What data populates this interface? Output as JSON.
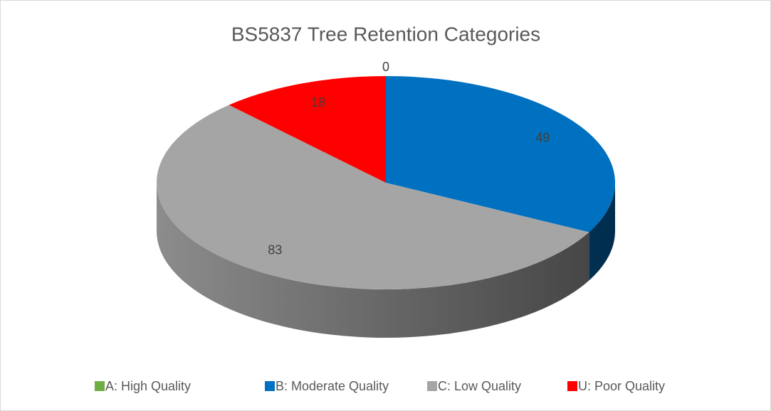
{
  "chart_data": {
    "type": "pie",
    "title": "BS5837 Tree Retention Categories",
    "categories": [
      "A: High Quality",
      "B: Moderate Quality",
      "C: Low Quality",
      "U: Poor Quality"
    ],
    "values": [
      0,
      49,
      83,
      18
    ],
    "colors": [
      "#70ad47",
      "#0070c0",
      "#a5a5a5",
      "#ff0000"
    ],
    "legend": "bottom"
  }
}
